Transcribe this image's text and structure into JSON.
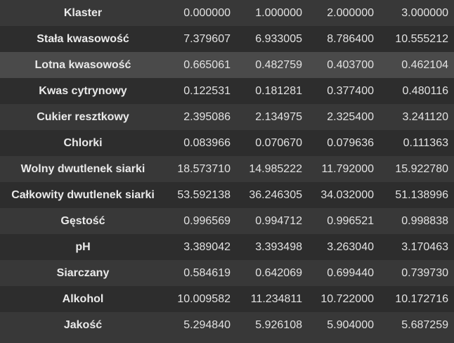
{
  "table": {
    "rows": [
      {
        "label": "Klaster",
        "values": [
          "0.000000",
          "1.000000",
          "2.000000",
          "3.000000"
        ]
      },
      {
        "label": "Stała kwasowość",
        "values": [
          "7.379607",
          "6.933005",
          "8.786400",
          "10.555212"
        ]
      },
      {
        "label": "Lotna kwasowość",
        "values": [
          "0.665061",
          "0.482759",
          "0.403700",
          "0.462104"
        ]
      },
      {
        "label": "Kwas cytrynowy",
        "values": [
          "0.122531",
          "0.181281",
          "0.377400",
          "0.480116"
        ]
      },
      {
        "label": "Cukier resztkowy",
        "values": [
          "2.395086",
          "2.134975",
          "2.325400",
          "3.241120"
        ]
      },
      {
        "label": "Chlorki",
        "values": [
          "0.083966",
          "0.070670",
          "0.079636",
          "0.111363"
        ]
      },
      {
        "label": "Wolny dwutlenek siarki",
        "values": [
          "18.573710",
          "14.985222",
          "11.792000",
          "15.922780"
        ]
      },
      {
        "label": "Całkowity dwutlenek siarki",
        "values": [
          "53.592138",
          "36.246305",
          "34.032000",
          "51.138996"
        ]
      },
      {
        "label": "Gęstość",
        "values": [
          "0.996569",
          "0.994712",
          "0.996521",
          "0.998838"
        ]
      },
      {
        "label": "pH",
        "values": [
          "3.389042",
          "3.393498",
          "3.263040",
          "3.170463"
        ]
      },
      {
        "label": "Siarczany",
        "values": [
          "0.584619",
          "0.642069",
          "0.699440",
          "0.739730"
        ]
      },
      {
        "label": "Alkohol",
        "values": [
          "10.009582",
          "11.234811",
          "10.722000",
          "10.172716"
        ]
      },
      {
        "label": "Jakość",
        "values": [
          "5.294840",
          "5.926108",
          "5.904000",
          "5.687259"
        ]
      }
    ]
  },
  "colors": {
    "row_light": "#383838",
    "row_dark": "#2d2d2d",
    "row_hover": "#4a4a4a",
    "text": "#e6e6e6"
  }
}
